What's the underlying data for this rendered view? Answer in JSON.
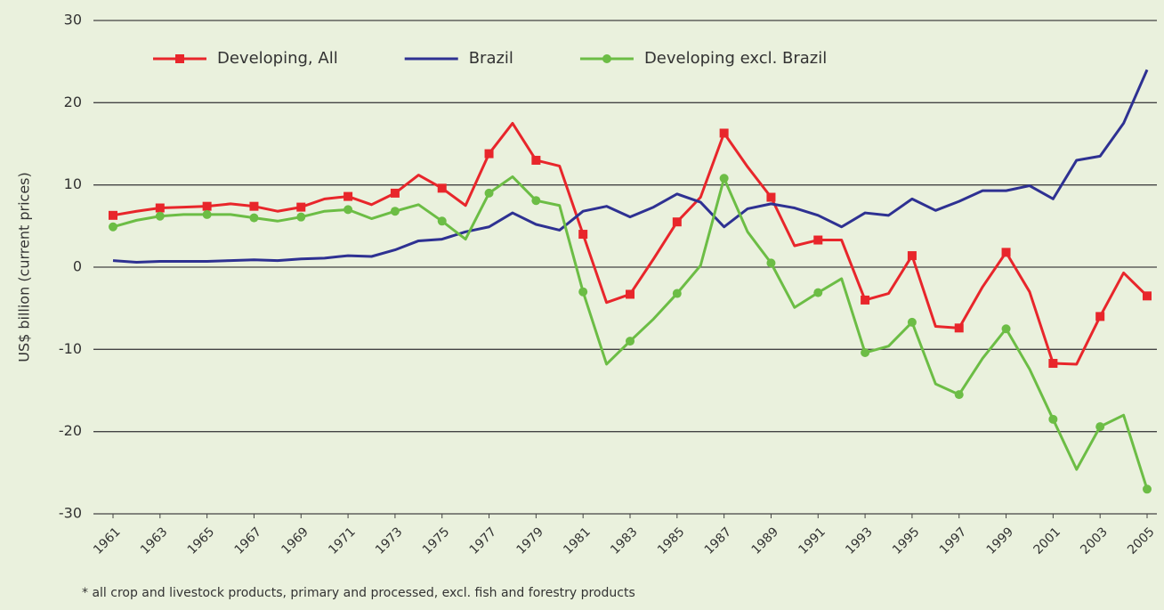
{
  "chart_data": {
    "type": "line",
    "y_label": "US$ billion (current prices)",
    "footnote": "* all crop and livestock products, primary and processed, excl. fish and forestry products",
    "x": [
      1961,
      1962,
      1963,
      1964,
      1965,
      1966,
      1967,
      1968,
      1969,
      1970,
      1971,
      1972,
      1973,
      1974,
      1975,
      1976,
      1977,
      1978,
      1979,
      1980,
      1981,
      1982,
      1983,
      1984,
      1985,
      1986,
      1987,
      1988,
      1989,
      1990,
      1991,
      1992,
      1993,
      1994,
      1995,
      1996,
      1997,
      1998,
      1999,
      2000,
      2001,
      2002,
      2003,
      2004,
      2005
    ],
    "xlim": [
      1961,
      2005
    ],
    "xticks": [
      1961,
      1963,
      1965,
      1967,
      1969,
      1971,
      1973,
      1975,
      1977,
      1979,
      1981,
      1983,
      1985,
      1987,
      1989,
      1991,
      1993,
      1995,
      1997,
      1999,
      2001,
      2003,
      2005
    ],
    "ylim": [
      -30,
      30
    ],
    "yticks": [
      -30,
      -20,
      -10,
      0,
      10,
      20,
      30
    ],
    "grid": true,
    "legend": "top",
    "series": [
      {
        "name": "Developing, All",
        "color": "#e8262b",
        "marker": "square",
        "values": [
          6.3,
          6.8,
          7.2,
          7.3,
          7.4,
          7.7,
          7.4,
          6.8,
          7.3,
          8.3,
          8.6,
          7.6,
          9.0,
          11.2,
          9.6,
          7.5,
          13.8,
          17.5,
          13.0,
          12.3,
          4.0,
          -4.3,
          -3.3,
          1.0,
          5.5,
          8.5,
          16.3,
          12.2,
          8.5,
          2.6,
          3.3,
          3.3,
          -4.0,
          -3.2,
          1.4,
          -7.2,
          -7.4,
          -2.4,
          1.8,
          -3.0,
          -11.7,
          -11.8,
          -6.0,
          -0.7,
          -3.5
        ]
      },
      {
        "name": "Brazil",
        "color": "#2e3192",
        "marker": "none",
        "values": [
          0.8,
          0.6,
          0.7,
          0.7,
          0.7,
          0.8,
          0.9,
          0.8,
          1.0,
          1.1,
          1.4,
          1.3,
          2.1,
          3.2,
          3.4,
          4.3,
          4.9,
          6.6,
          5.2,
          4.5,
          6.8,
          7.4,
          6.1,
          7.3,
          8.9,
          7.9,
          4.9,
          7.1,
          7.7,
          7.2,
          6.3,
          4.9,
          6.6,
          6.3,
          8.3,
          6.9,
          8.0,
          9.3,
          9.3,
          9.9,
          8.3,
          13.0,
          13.5,
          17.5,
          24.0
        ]
      },
      {
        "name": "Developing excl. Brazil",
        "color": "#6cbd45",
        "marker": "circle",
        "values": [
          4.9,
          5.7,
          6.2,
          6.4,
          6.4,
          6.4,
          6.0,
          5.6,
          6.1,
          6.8,
          7.0,
          5.9,
          6.8,
          7.6,
          5.6,
          3.4,
          9.0,
          11.0,
          8.1,
          7.5,
          -3.0,
          -11.8,
          -9.0,
          -6.3,
          -3.2,
          0.2,
          10.8,
          4.3,
          0.5,
          -4.9,
          -3.1,
          -1.4,
          -10.4,
          -9.6,
          -6.7,
          -14.2,
          -15.5,
          -11.1,
          -7.5,
          -12.4,
          -18.5,
          -24.6,
          -19.4,
          -18.0,
          -27.0
        ]
      }
    ]
  }
}
